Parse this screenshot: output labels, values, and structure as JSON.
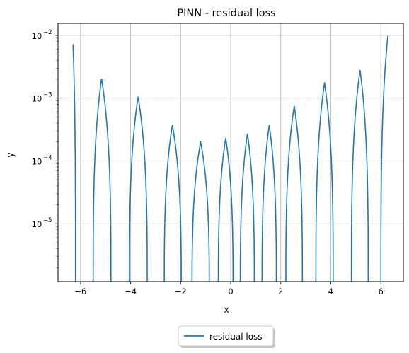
{
  "chart_data": {
    "type": "line",
    "title": "PINN - residual loss",
    "xlabel": "x",
    "ylabel": "y",
    "xlim": [
      -6.9,
      6.9
    ],
    "ylim": [
      1.2e-06,
      0.0155
    ],
    "yscale": "log",
    "grid": true,
    "legend_position": "below-center",
    "x_ticks": [
      {
        "v": -6,
        "label": "−6"
      },
      {
        "v": -4,
        "label": "−4"
      },
      {
        "v": -2,
        "label": "−2"
      },
      {
        "v": 0,
        "label": "0"
      },
      {
        "v": 2,
        "label": "2"
      },
      {
        "v": 4,
        "label": "4"
      },
      {
        "v": 6,
        "label": "6"
      }
    ],
    "y_ticks": [
      {
        "v": 1e-05,
        "base": "10",
        "exp": "−5"
      },
      {
        "v": 0.0001,
        "base": "10",
        "exp": "−4"
      },
      {
        "v": 0.001,
        "base": "10",
        "exp": "−3"
      },
      {
        "v": 0.01,
        "base": "10",
        "exp": "−2"
      }
    ],
    "series": [
      {
        "name": "residual loss",
        "color": "#1f77b4",
        "lobes": [
          {
            "start": -6.3,
            "end": -6.2,
            "peak_x": -6.3,
            "peak": 0.0072
          },
          {
            "start": -5.5,
            "end": -4.78,
            "peak_x": -5.16,
            "peak": 0.00205
          },
          {
            "start": -4.05,
            "end": -3.33,
            "peak_x": -3.7,
            "peak": 0.00105
          },
          {
            "start": -2.66,
            "end": -1.97,
            "peak_x": -2.33,
            "peak": 0.00037
          },
          {
            "start": -1.55,
            "end": -0.85,
            "peak_x": -1.2,
            "peak": 0.0002
          },
          {
            "start": -0.5,
            "end": 0.1,
            "peak_x": -0.2,
            "peak": 0.00023
          },
          {
            "start": 0.38,
            "end": 0.95,
            "peak_x": 0.67,
            "peak": 0.00027
          },
          {
            "start": 1.25,
            "end": 1.83,
            "peak_x": 1.54,
            "peak": 0.00037
          },
          {
            "start": 2.2,
            "end": 2.87,
            "peak_x": 2.54,
            "peak": 0.00075
          },
          {
            "start": 3.4,
            "end": 4.1,
            "peak_x": 3.75,
            "peak": 0.00175
          },
          {
            "start": 4.82,
            "end": 5.5,
            "peak_x": 5.17,
            "peak": 0.0028
          },
          {
            "start": 6.0,
            "end": 6.28,
            "peak_x": 6.28,
            "peak": 0.0098
          }
        ]
      }
    ]
  }
}
